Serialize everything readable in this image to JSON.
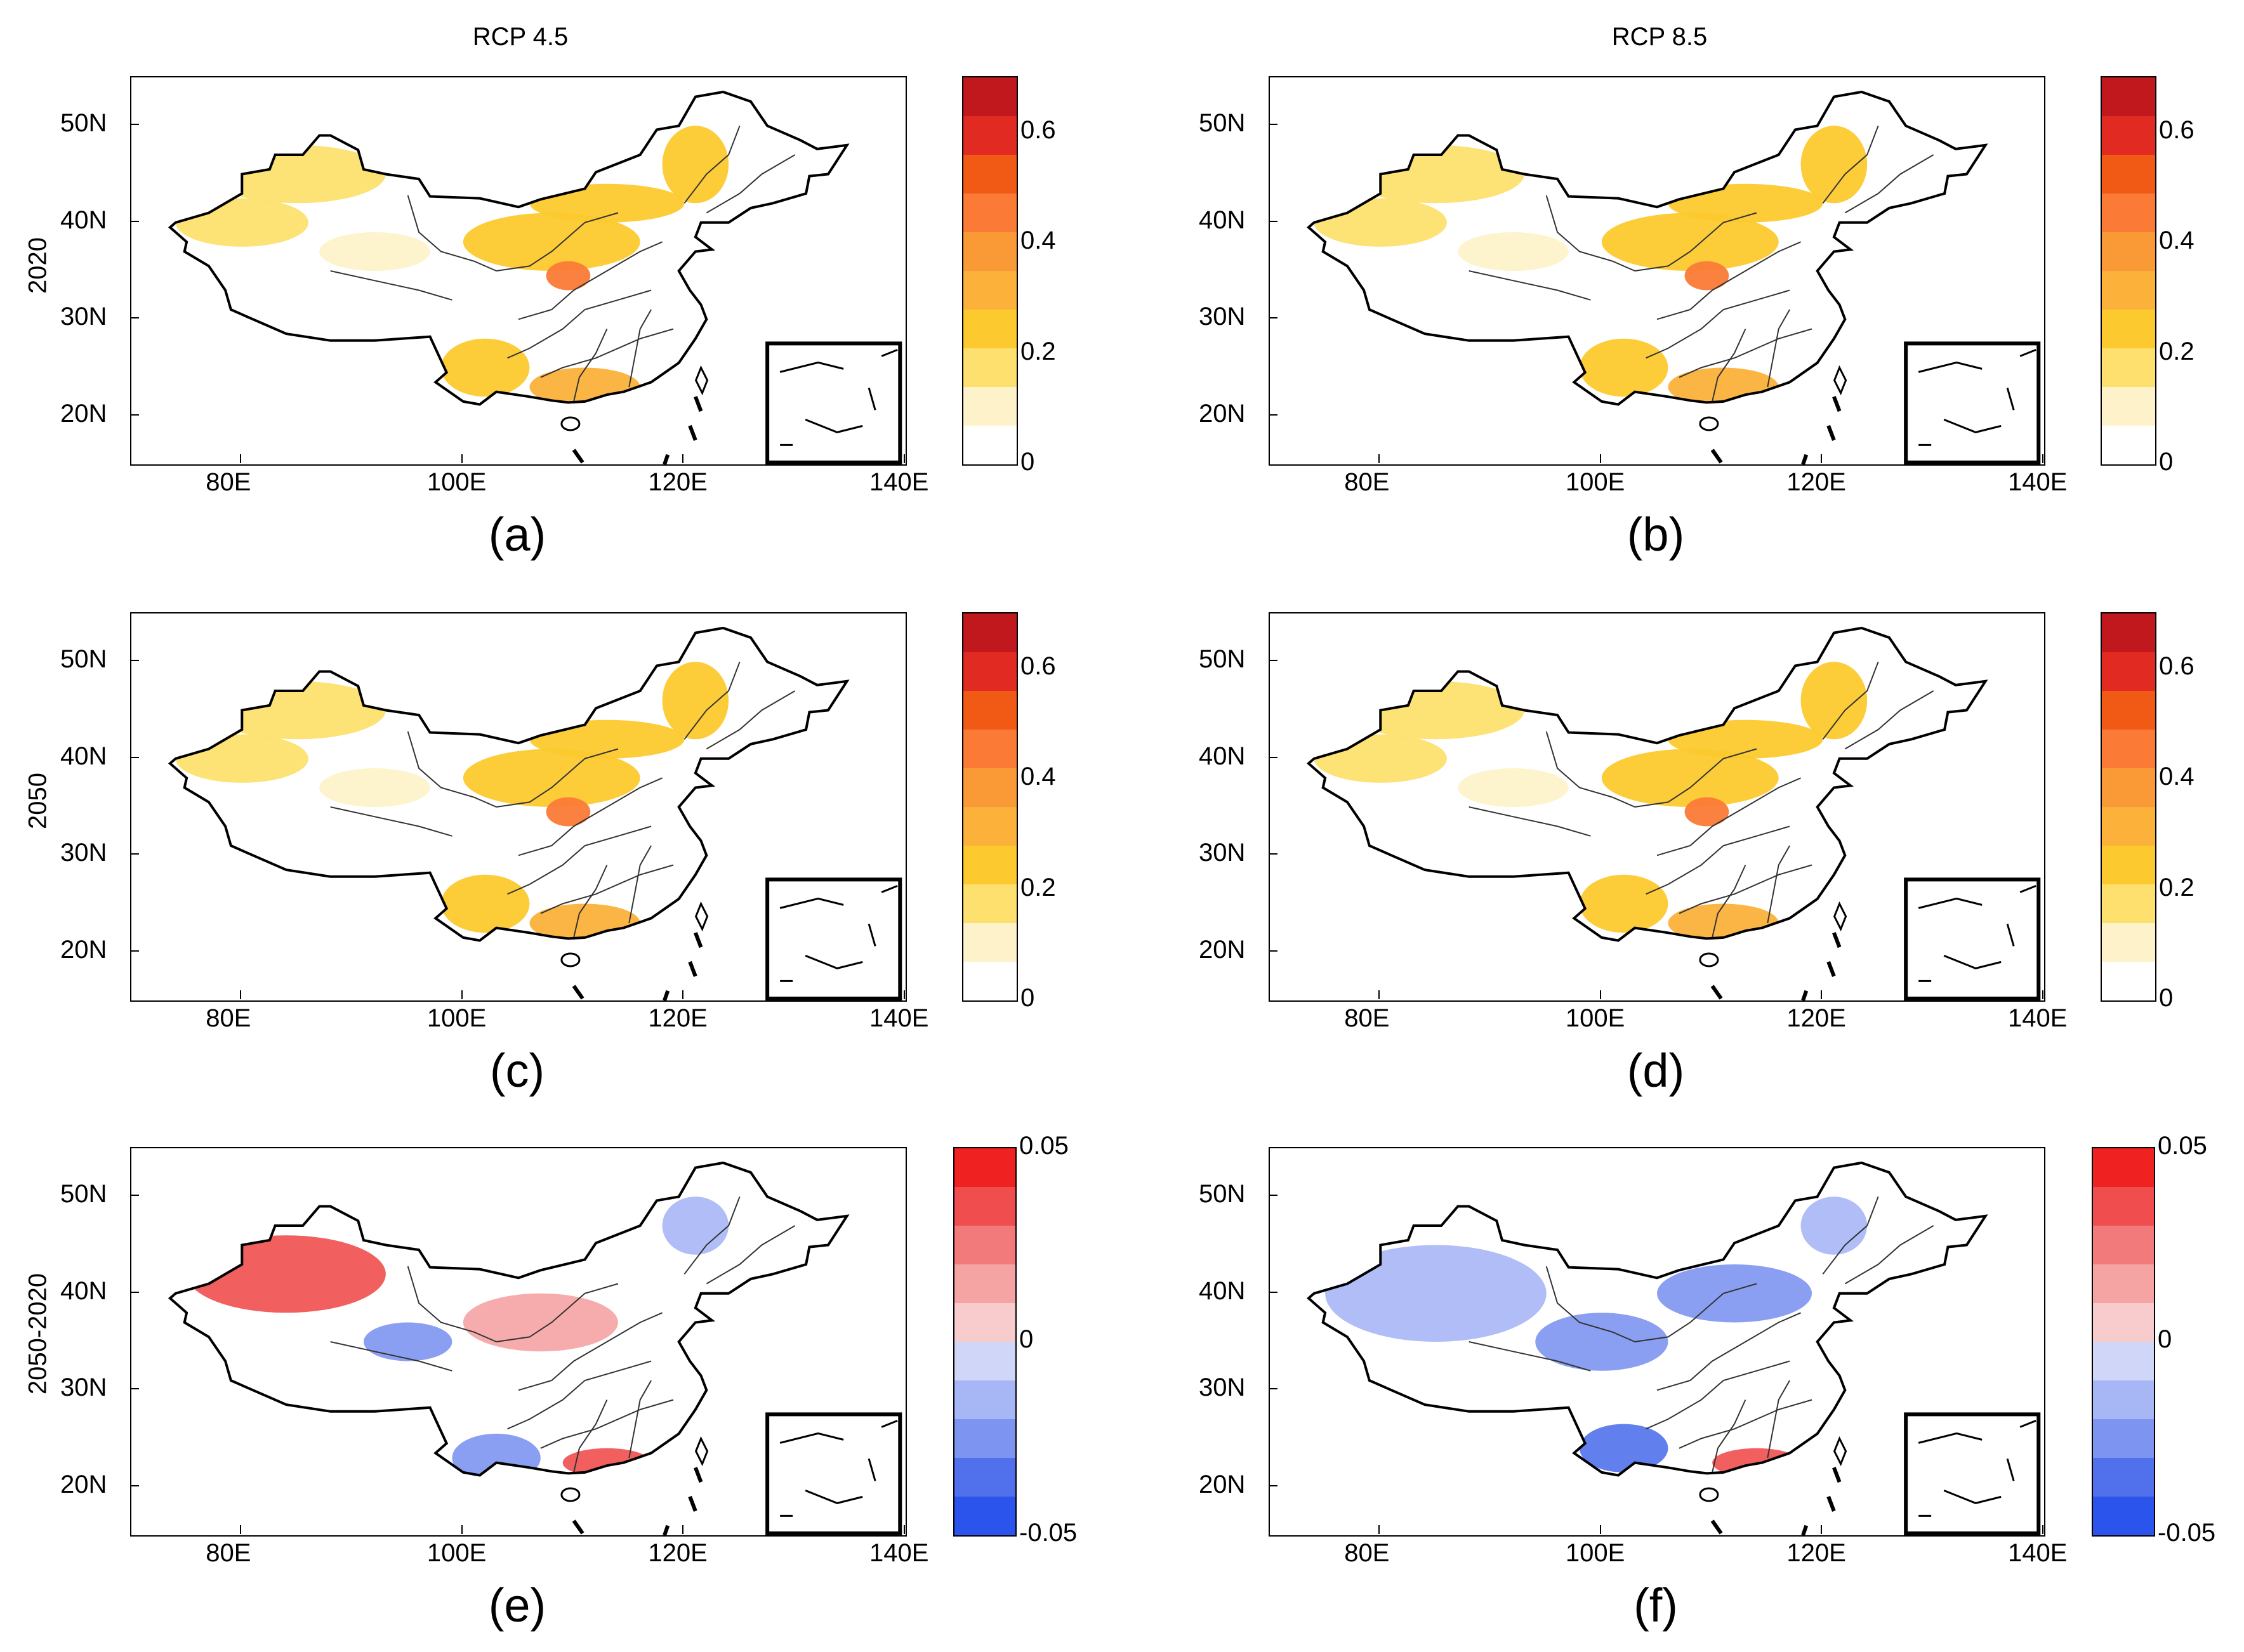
{
  "column_titles": [
    "RCP 4.5",
    "RCP 8.5"
  ],
  "row_labels": [
    "2020",
    "2050",
    "2050-2020"
  ],
  "panels": [
    {
      "id": "a",
      "label": "(a)",
      "scenario": "RCP 4.5",
      "year": "2020",
      "type": "sequential"
    },
    {
      "id": "b",
      "label": "(b)",
      "scenario": "RCP 8.5",
      "year": "2020",
      "type": "sequential"
    },
    {
      "id": "c",
      "label": "(c)",
      "scenario": "RCP 4.5",
      "year": "2050",
      "type": "sequential"
    },
    {
      "id": "d",
      "label": "(d)",
      "scenario": "RCP 8.5",
      "year": "2050",
      "type": "sequential"
    },
    {
      "id": "e",
      "label": "(e)",
      "scenario": "RCP 4.5",
      "year": "2050-2020",
      "type": "diverging"
    },
    {
      "id": "f",
      "label": "(f)",
      "scenario": "RCP 8.5",
      "year": "2050-2020",
      "type": "diverging"
    }
  ],
  "axes": {
    "longitude_ticks": [
      "80E",
      "100E",
      "120E",
      "140E"
    ],
    "latitude_ticks": [
      "50N",
      "40N",
      "30N",
      "20N"
    ],
    "lon_range": [
      70,
      140
    ],
    "lat_range": [
      15,
      55
    ]
  },
  "colorbars": {
    "sequential": {
      "labels": [
        "0.6",
        "0.4",
        "0.2",
        "0"
      ],
      "range": [
        0,
        0.7
      ],
      "colors": [
        "#c0181d",
        "#e02a22",
        "#f05a14",
        "#fb7a36",
        "#fa9a37",
        "#fbb13a",
        "#fcc92e",
        "#fde06e",
        "#fdf2c9",
        "#ffffff"
      ]
    },
    "diverging": {
      "labels": [
        "0.05",
        "0",
        "-0.05"
      ],
      "range": [
        -0.05,
        0.05
      ],
      "colors": [
        "#ef2121",
        "#f04e4e",
        "#f27a7a",
        "#f5a3a3",
        "#f8cccc",
        "#cfd6f8",
        "#a7b6f5",
        "#7d95f0",
        "#5171ec",
        "#2a54ec"
      ]
    }
  },
  "colors": {
    "border": "#000000",
    "province_line": "#333333"
  }
}
